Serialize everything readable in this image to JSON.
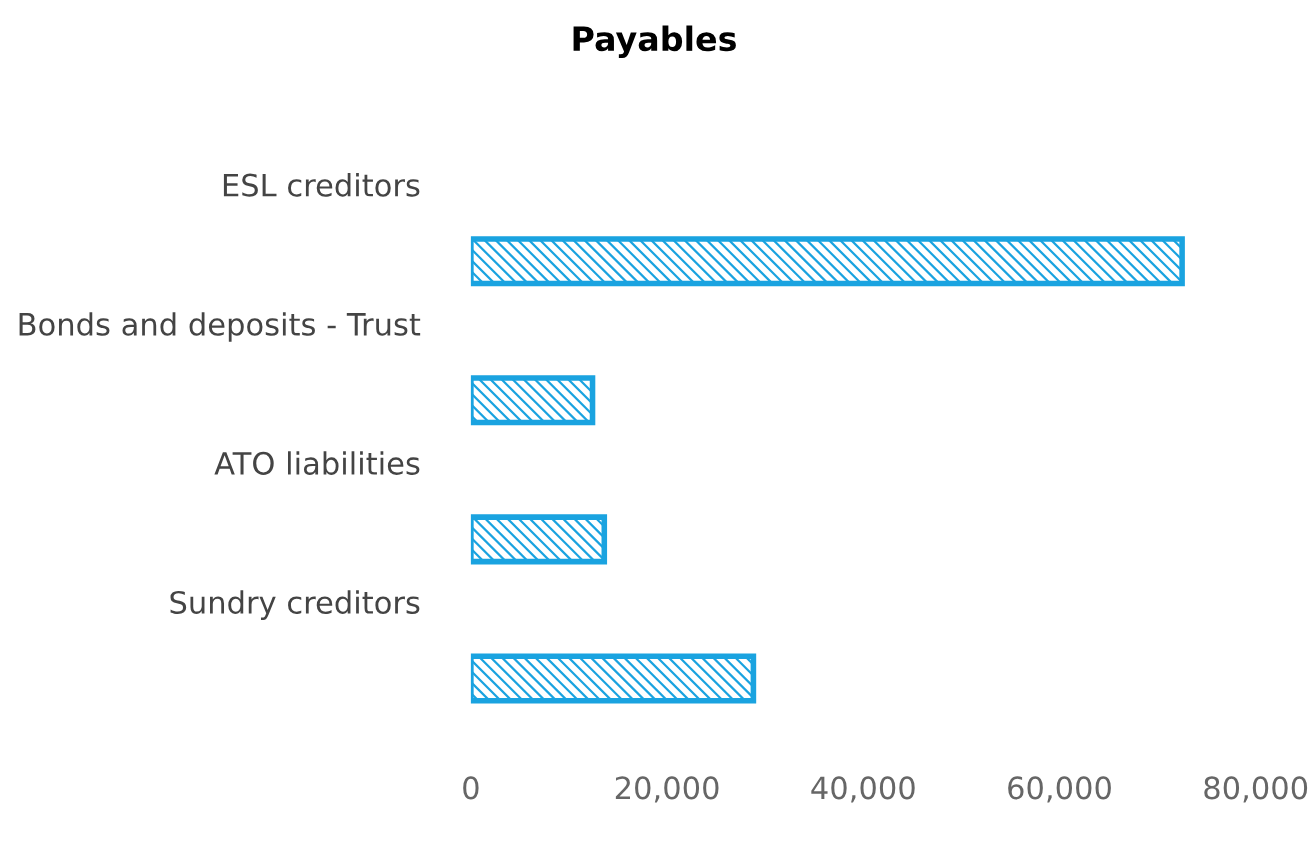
{
  "chart_data": {
    "type": "bar",
    "orientation": "horizontal",
    "title": "Payables",
    "categories": [
      "ESL creditors",
      "Bonds and deposits - Trust",
      "ATO liabilities",
      "Sundry creditors"
    ],
    "values": [
      72500,
      12400,
      13600,
      28800
    ],
    "color": "#1aa3e0",
    "xlim": [
      0,
      80000
    ],
    "xticks": [
      0,
      {
        "value": 20000,
        "label": "20,000"
      },
      {
        "value": 40000,
        "label": "40,000"
      },
      {
        "value": 60000,
        "label": "60,000"
      },
      {
        "value": 80000,
        "label": "80,000"
      }
    ],
    "grid": false
  }
}
